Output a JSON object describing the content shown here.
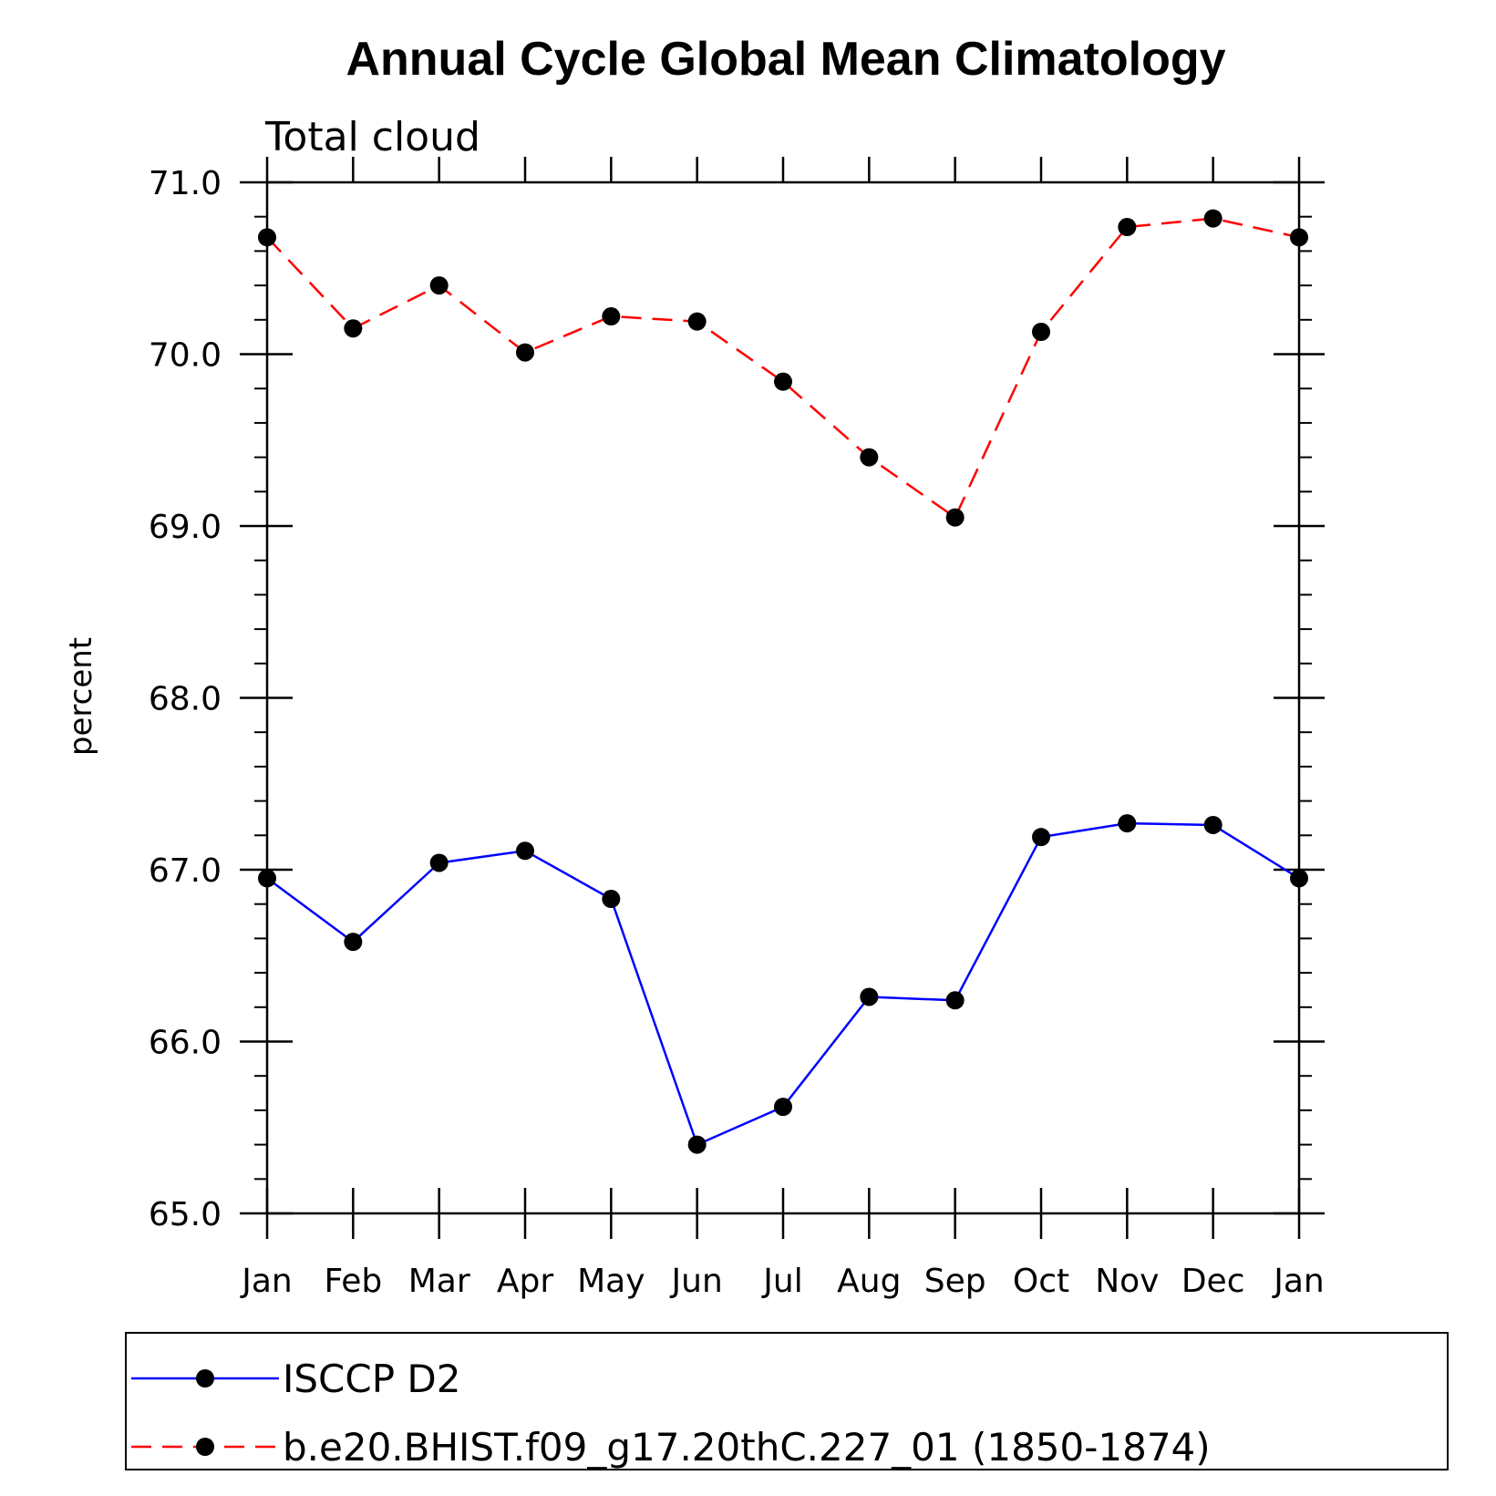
{
  "chart_data": {
    "type": "line",
    "title": "Annual Cycle Global Mean Climatology",
    "subtitle": "Total cloud",
    "xlabel": "",
    "ylabel": "percent",
    "categories": [
      "Jan",
      "Feb",
      "Mar",
      "Apr",
      "May",
      "Jun",
      "Jul",
      "Aug",
      "Sep",
      "Oct",
      "Nov",
      "Dec",
      "Jan"
    ],
    "ylim": [
      65.0,
      71.0
    ],
    "y_ticks": [
      "65.0",
      "66.0",
      "67.0",
      "68.0",
      "69.0",
      "70.0",
      "71.0"
    ],
    "series": [
      {
        "name": "ISCCP D2",
        "color": "#0000ff",
        "dash": "solid",
        "marker": "circle",
        "values": [
          66.95,
          66.58,
          67.04,
          67.11,
          66.83,
          65.4,
          65.62,
          66.26,
          66.24,
          67.19,
          67.27,
          67.26,
          66.95
        ]
      },
      {
        "name": "b.e20.BHIST.f09_g17.20thC.227_01 (1850-1874)",
        "color": "#ff0000",
        "dash": "dashed",
        "marker": "circle",
        "values": [
          70.68,
          70.15,
          70.4,
          70.01,
          70.22,
          70.19,
          69.84,
          69.4,
          69.05,
          70.13,
          70.74,
          70.79,
          70.68
        ]
      }
    ],
    "legend_position": "bottom",
    "grid": false
  }
}
